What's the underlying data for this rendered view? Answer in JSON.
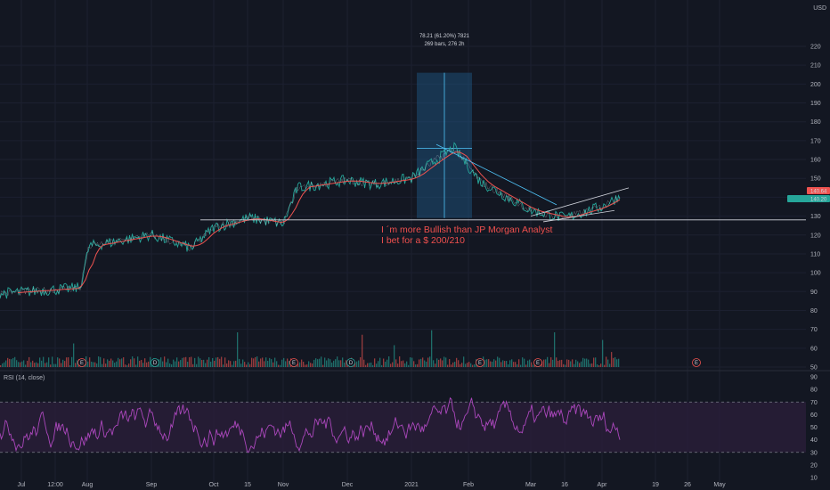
{
  "chart_data": [
    {
      "type": "candlestick",
      "currency": "USD",
      "last_price_label": "140.64",
      "ma_label": "140.20",
      "ylim": [
        50,
        230
      ],
      "y_ticks": [
        50,
        60,
        70,
        80,
        90,
        100,
        110,
        120,
        130,
        140,
        150,
        160,
        170,
        180,
        190,
        200,
        210,
        220
      ],
      "x_ticks": [
        "Jul",
        "12:00",
        "Aug",
        "Sep",
        "Oct",
        "15",
        "Nov",
        "Dec",
        "2021",
        "Feb",
        "Mar",
        "16",
        "Apr",
        "19",
        "26",
        "May"
      ],
      "price_path": [
        {
          "date": "Jul",
          "close": 89
        },
        {
          "date": "12:00",
          "close": 91
        },
        {
          "date": "Aug",
          "close": 92
        },
        {
          "date": "Aug-mid",
          "close": 114
        },
        {
          "date": "Sep",
          "close": 120
        },
        {
          "date": "Sep-mid",
          "close": 113
        },
        {
          "date": "Oct",
          "close": 124
        },
        {
          "date": "15",
          "close": 129
        },
        {
          "date": "Nov",
          "close": 126
        },
        {
          "date": "Nov-mid",
          "close": 145
        },
        {
          "date": "Dec",
          "close": 149
        },
        {
          "date": "Dec-mid",
          "close": 147
        },
        {
          "date": "2021",
          "close": 150
        },
        {
          "date": "Jan-mid",
          "close": 160
        },
        {
          "date": "Feb",
          "close": 166
        },
        {
          "date": "Feb-mid",
          "close": 148
        },
        {
          "date": "Mar",
          "close": 133
        },
        {
          "date": "16",
          "close": 129
        },
        {
          "date": "Apr",
          "close": 135
        },
        {
          "date": "Apr-2",
          "close": 140.64
        }
      ],
      "measure_box": {
        "label_line1": "78.21 (61.20%) 7821",
        "label_line2": "269 bars, 276 2h",
        "y_range": [
          129,
          206
        ]
      },
      "support_line": 128,
      "annotation_line1": "I ´m more Bullish than JP Morgan Analyst",
      "annotation_line2": "I bet for a $ 200/210",
      "event_markers": [
        "E",
        "D",
        "E",
        "D",
        "E",
        "E",
        "E"
      ]
    },
    {
      "type": "line",
      "title": "RSI (14, close)",
      "ylim": [
        10,
        90
      ],
      "y_ticks": [
        10,
        20,
        30,
        40,
        50,
        60,
        70,
        80,
        90
      ],
      "upper_band": 70,
      "lower_band": 30
    }
  ],
  "colors": {
    "background": "#131722",
    "price": "#26a69a",
    "ma": "#ef5350",
    "annotation": "#f0504e",
    "box": "#1e5a8a",
    "rsi": "#ab47bc",
    "band_fill": "#2a1e3a",
    "volume_up": "#26a69a",
    "volume_down": "#ef5350"
  }
}
